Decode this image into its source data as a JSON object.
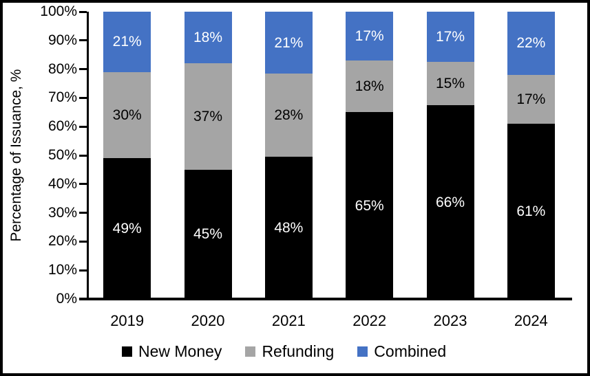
{
  "frame": {
    "border_color": "#000000",
    "background": "#ffffff",
    "axis_color": "#000000"
  },
  "chart_data": {
    "type": "bar",
    "stacked": true,
    "normalized_to_100": true,
    "ylabel": "Percentage of Issuance, %",
    "categories": [
      "2019",
      "2020",
      "2021",
      "2022",
      "2023",
      "2024"
    ],
    "series": [
      {
        "name": "New Money",
        "color": "#000000",
        "label_color": "#ffffff",
        "values": [
          49,
          45,
          48,
          65,
          66,
          61
        ]
      },
      {
        "name": "Refunding",
        "color": "#a5a5a5",
        "label_color": "#000000",
        "values": [
          30,
          37,
          28,
          18,
          15,
          17
        ]
      },
      {
        "name": "Combined",
        "color": "#4472c4",
        "label_color": "#ffffff",
        "values": [
          21,
          18,
          21,
          17,
          17,
          22
        ]
      }
    ],
    "value_suffix": "%",
    "y_ticks": [
      "0%",
      "10%",
      "20%",
      "30%",
      "40%",
      "50%",
      "60%",
      "70%",
      "80%",
      "90%",
      "100%"
    ],
    "ylim": [
      0,
      100
    ],
    "grid": false,
    "legend_position": "bottom"
  }
}
